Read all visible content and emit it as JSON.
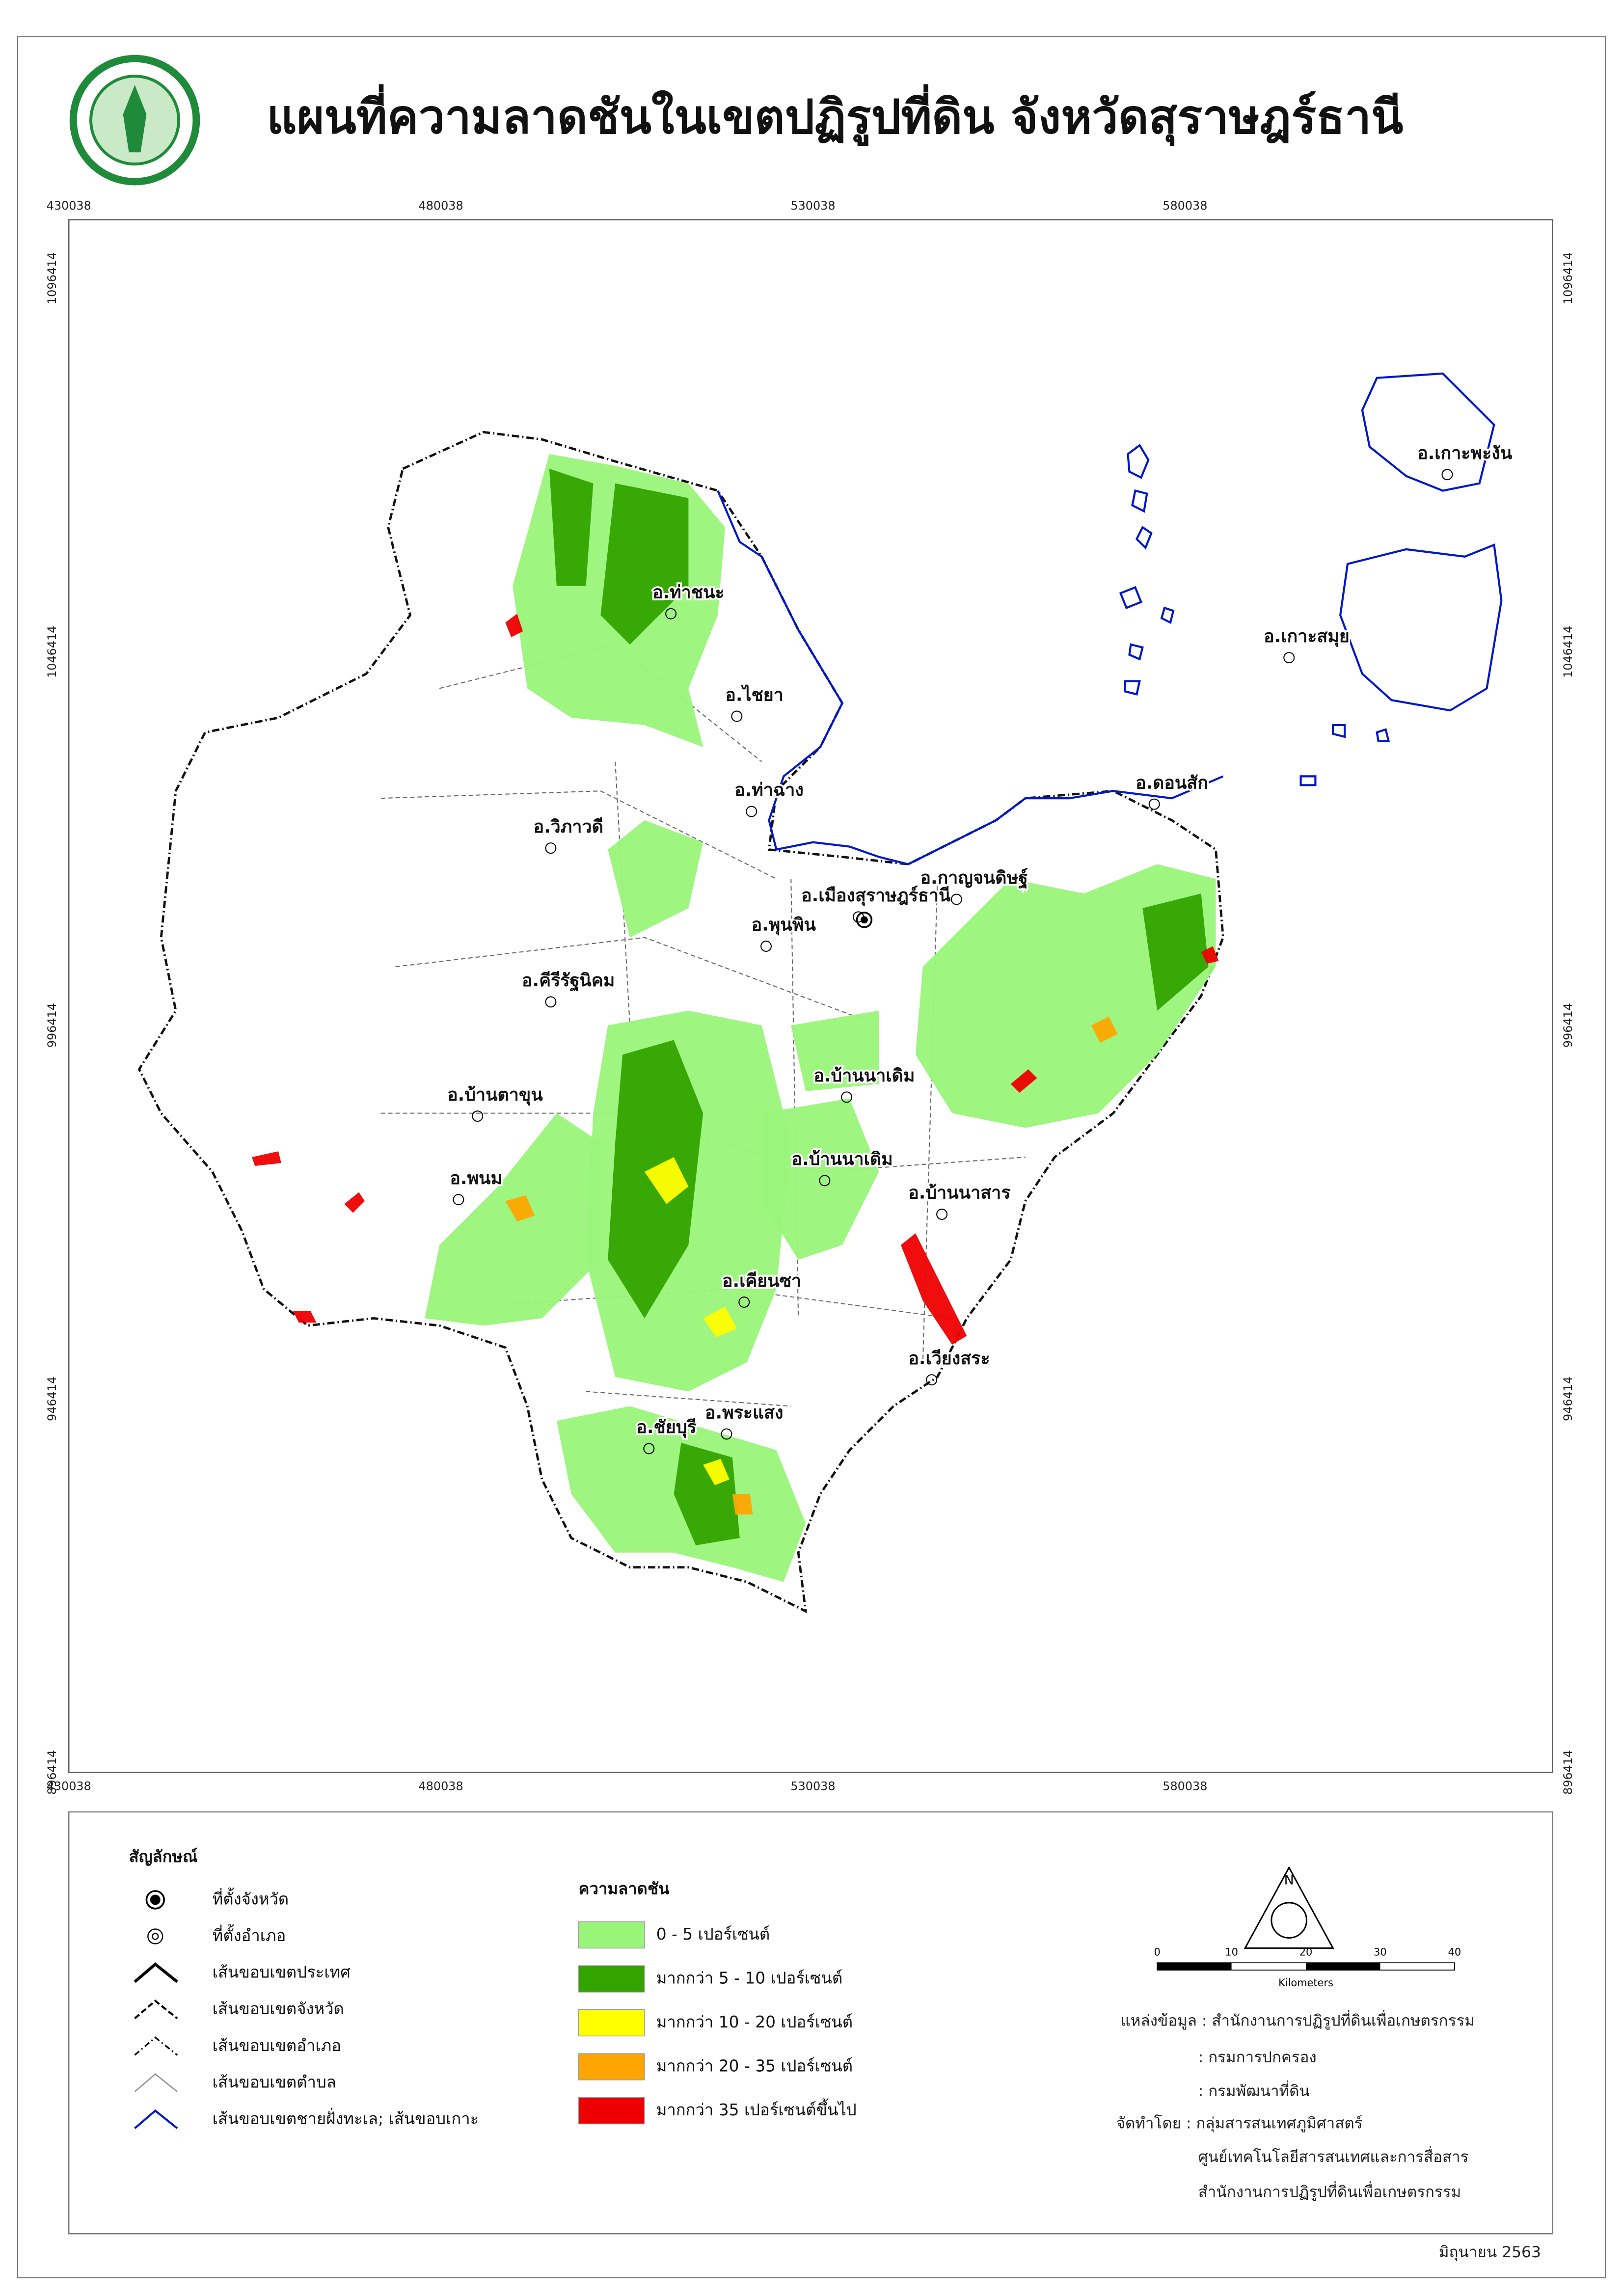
{
  "header": {
    "title": "แผนที่ความลาดชันในเขตปฏิรูปที่ดิน จังหวัดสุราษฎร์ธานี"
  },
  "map": {
    "eastings": [
      430038,
      480038,
      530038,
      580038
    ],
    "northings": [
      1096414,
      1046414,
      996414,
      946414,
      896414
    ],
    "districts": [
      "อ.ท่าชนะ",
      "อ.ไชยา",
      "อ.ท่าฉาง",
      "อ.วิภาวดี",
      "อ.เมืองสุราษฎร์ธานี",
      "อ.กาญจนดิษฐ์",
      "อ.พุนพิน",
      "อ.คีรีรัฐนิคม",
      "อ.บ้านตาขุน",
      "อ.บ้านนาเดิม",
      "อ.บ้านนาเดิม",
      "อ.บ้านนาสาร",
      "อ.พนม",
      "อ.เคียนซา",
      "อ.เวียงสระ",
      "อ.ชัยบุรี",
      "อ.พระแสง",
      "อ.ดอนสัก",
      "อ.เกาะพะงัน",
      "อ.เกาะสมุย"
    ]
  },
  "legend": {
    "title": "สัญลักษณ์",
    "symbols": [
      "ที่ตั้งจังหวัด",
      "ที่ตั้งอำเภอ",
      "เส้นขอบเขตประเทศ",
      "เส้นขอบเขตจังหวัด",
      "เส้นขอบเขตอำเภอ",
      "เส้นขอบเขตตำบล",
      "เส้นขอบเขตชายฝั่งทะเล; เส้นขอบเกาะ"
    ]
  },
  "slope_legend": {
    "title": "ความลาดชัน",
    "classes": [
      {
        "label": "0 - 5 เปอร์เซนต์",
        "color": "#99f57a"
      },
      {
        "label": "มากกว่า 5 - 10 เปอร์เซนต์",
        "color": "#33a300"
      },
      {
        "label": "มากกว่า 10 - 20 เปอร์เซนต์",
        "color": "#ffff00"
      },
      {
        "label": "มากกว่า 20 - 35 เปอร์เซนต์",
        "color": "#ffa500"
      },
      {
        "label": "มากกว่า 35 เปอร์เซนต์ขึ้นไป",
        "color": "#ee0000"
      }
    ]
  },
  "scale": {
    "ticks": [
      0,
      10,
      20,
      30,
      40
    ],
    "unit": "Kilometers"
  },
  "north": "N",
  "source": {
    "lines": [
      "แหล่งข้อมูล : สำนักงานการปฏิรูปที่ดินเพื่อเกษตรกรรม",
      ": กรมการปกครอง",
      ": กรมพัฒนาที่ดิน",
      "จัดทำโดย : กลุ่มสารสนเทศภูมิศาสตร์",
      "ศูนย์เทคโนโลยีสารสนเทศและการสื่อสาร",
      "สำนักงานการปฏิรูปที่ดินเพื่อเกษตรกรรม"
    ]
  },
  "date": "มิถุนายน 2563"
}
